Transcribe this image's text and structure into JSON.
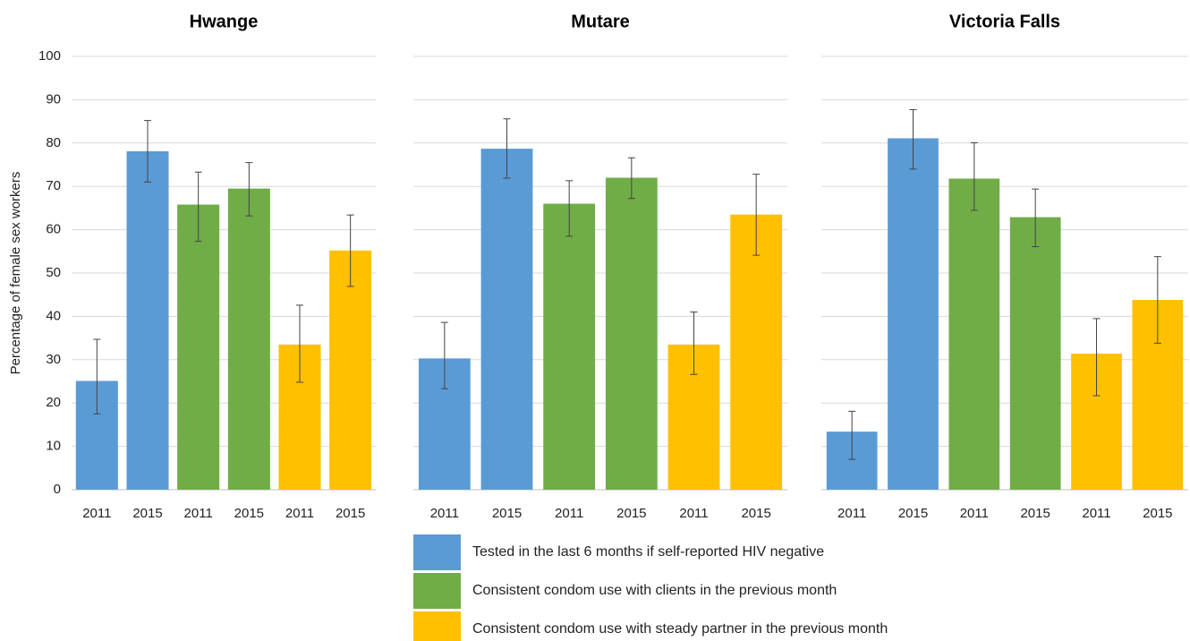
{
  "legend": [
    {
      "name": "Tested in the last 6 months if self-reported HIV negative",
      "color": "#5b9bd5"
    },
    {
      "name": "Consistent condom use with clients in the previous month",
      "color": "#70ad47"
    },
    {
      "name": "Consistent condom use with steady partner in the previous month",
      "color": "#ffc000"
    }
  ],
  "chart_data": [
    {
      "type": "bar",
      "title": "Hwange",
      "ylabel": "Percentage of female sex workers",
      "categories": [
        "2011",
        "2015"
      ],
      "series": [
        {
          "values": [
            25.1,
            78.1
          ],
          "lower": [
            17.5,
            71
          ],
          "upper": [
            34.7,
            85.2
          ]
        },
        {
          "values": [
            65.8,
            69.5
          ],
          "lower": [
            57.3,
            63.2
          ],
          "upper": [
            73.3,
            75.5
          ]
        },
        {
          "values": [
            33.5,
            55.2
          ],
          "lower": [
            24.8,
            46.9
          ],
          "upper": [
            42.6,
            63.4
          ]
        }
      ],
      "ylim": [
        0,
        100
      ],
      "yticks": [
        0,
        10,
        20,
        30,
        40,
        50,
        60,
        70,
        80,
        90,
        100
      ],
      "grid": true
    },
    {
      "type": "bar",
      "title": "Mutare",
      "categories": [
        "2011",
        "2015"
      ],
      "series": [
        {
          "values": [
            30.3,
            78.7
          ],
          "lower": [
            23.3,
            71.9
          ],
          "upper": [
            38.6,
            85.6
          ]
        },
        {
          "values": [
            66,
            72
          ],
          "lower": [
            58.5,
            67.2
          ],
          "upper": [
            71.3,
            76.6
          ]
        },
        {
          "values": [
            33.5,
            63.5
          ],
          "lower": [
            26.6,
            54.1
          ],
          "upper": [
            41,
            72.8
          ]
        }
      ],
      "ylim": [
        0,
        100
      ],
      "yticks": [
        0,
        10,
        20,
        30,
        40,
        50,
        60,
        70,
        80,
        90,
        100
      ],
      "grid": true
    },
    {
      "type": "bar",
      "title": "Victoria Falls",
      "categories": [
        "2011",
        "2015"
      ],
      "series": [
        {
          "values": [
            13.4,
            81.1
          ],
          "lower": [
            7,
            74
          ],
          "upper": [
            18.1,
            87.7
          ]
        },
        {
          "values": [
            71.8,
            62.9
          ],
          "lower": [
            64.5,
            56.1
          ],
          "upper": [
            80.1,
            69.4
          ]
        },
        {
          "values": [
            31.4,
            43.8
          ],
          "lower": [
            21.7,
            33.8
          ],
          "upper": [
            39.5,
            53.8
          ]
        }
      ],
      "ylim": [
        0,
        100
      ],
      "yticks": [
        0,
        10,
        20,
        30,
        40,
        50,
        60,
        70,
        80,
        90,
        100
      ],
      "grid": true
    }
  ]
}
